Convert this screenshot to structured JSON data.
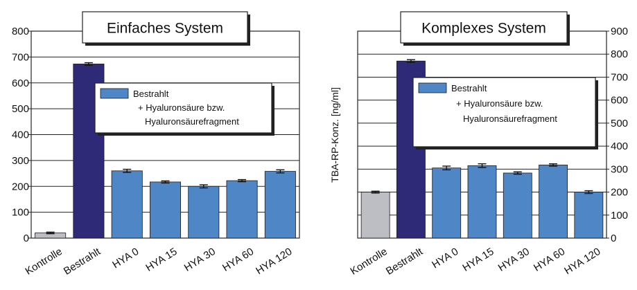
{
  "colors": {
    "kontrolle": "#bdbdc4",
    "bestrahlt": "#2e2a78",
    "hya": "#4f86c6",
    "grid": "#222222"
  },
  "chart_data": [
    {
      "type": "bar",
      "title": "Einfaches System",
      "ylabel": "",
      "ylim": [
        0,
        800
      ],
      "yticks": [
        "0",
        "100",
        "200",
        "300",
        "400",
        "500",
        "600",
        "700",
        "800"
      ],
      "axis_side": "left",
      "categories": [
        "Kontrolle",
        "Bestrahlt",
        "HYA 0",
        "HYA 15",
        "HYA 30",
        "HYA 60",
        "HYA 120"
      ],
      "values": [
        20,
        673,
        260,
        217,
        200,
        222,
        258
      ],
      "errors": [
        3,
        5,
        6,
        4,
        6,
        4,
        6
      ],
      "bar_colors": [
        "kontrolle",
        "bestrahlt",
        "hya",
        "hya",
        "hya",
        "hya",
        "hya"
      ],
      "legend": {
        "lines": [
          "Bestrahlt",
          "+ Hyaluronsäure bzw.",
          "Hyaluronsäurefragment"
        ],
        "placement": "right"
      },
      "grid": true
    },
    {
      "type": "bar",
      "title": "Komplexes System",
      "ylabel": "TBA-RP-Konz. [ng/ml]",
      "ylim": [
        0,
        900
      ],
      "yticks": [
        "0",
        "100",
        "200",
        "300",
        "400",
        "500",
        "600",
        "700",
        "800",
        "900"
      ],
      "axis_side": "right",
      "categories": [
        "Kontrolle",
        "Bestrahlt",
        "HYA 0",
        "HYA 15",
        "HYA 30",
        "HYA 60",
        "HYA 120"
      ],
      "values": [
        200,
        770,
        305,
        315,
        283,
        318,
        200
      ],
      "errors": [
        4,
        6,
        8,
        8,
        5,
        5,
        6
      ],
      "bar_colors": [
        "kontrolle",
        "bestrahlt",
        "hya",
        "hya",
        "hya",
        "hya",
        "hya"
      ],
      "legend": {
        "lines": [
          "Bestrahlt",
          "+ Hyaluronsäure bzw.",
          "Hyaluronsäurefragment"
        ],
        "placement": "right"
      },
      "grid": true
    }
  ]
}
